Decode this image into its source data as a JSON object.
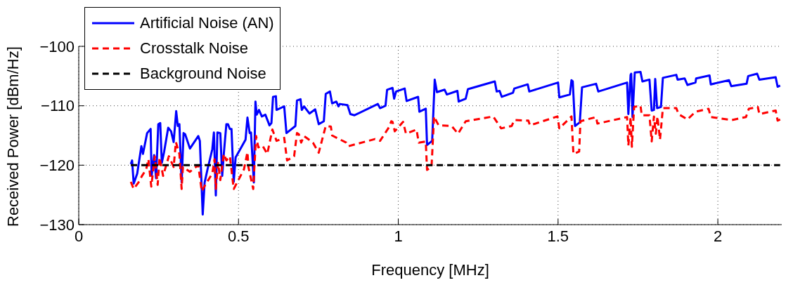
{
  "chart_data": {
    "type": "line",
    "xlabel": "Frequency [MHz]",
    "ylabel": "Received Power [dBm/Hz]",
    "xlim": [
      0,
      2.2
    ],
    "xticks": [
      0,
      0.5,
      1,
      1.5,
      2
    ],
    "ylim": [
      -130,
      -100
    ],
    "yticks": [
      -130,
      -120,
      -110,
      -100
    ],
    "grid": true,
    "legend": "top left",
    "series": [
      {
        "name": "Artificial Noise (AN)",
        "color": "#0000ff",
        "line_style": "solid",
        "x": [
          0.163,
          0.167,
          0.172,
          0.183,
          0.196,
          0.201,
          0.214,
          0.225,
          0.228,
          0.236,
          0.242,
          0.249,
          0.255,
          0.26,
          0.267,
          0.28,
          0.289,
          0.297,
          0.305,
          0.31,
          0.315,
          0.322,
          0.328,
          0.333,
          0.348,
          0.374,
          0.379,
          0.388,
          0.394,
          0.403,
          0.418,
          0.423,
          0.429,
          0.434,
          0.443,
          0.449,
          0.454,
          0.462,
          0.467,
          0.473,
          0.478,
          0.485,
          0.491,
          0.522,
          0.528,
          0.535,
          0.539,
          0.548,
          0.553,
          0.557,
          0.564,
          0.573,
          0.584,
          0.597,
          0.603,
          0.608,
          0.617,
          0.619,
          0.643,
          0.65,
          0.678,
          0.683,
          0.694,
          0.698,
          0.705,
          0.722,
          0.74,
          0.751,
          0.767,
          0.773,
          0.786,
          0.793,
          0.806,
          0.813,
          0.817,
          0.841,
          0.85,
          0.863,
          0.936,
          0.943,
          0.96,
          0.965,
          0.982,
          0.987,
          0.993,
          1.02,
          1.026,
          1.062,
          1.066,
          1.086,
          1.09,
          1.106,
          1.114,
          1.121,
          1.145,
          1.152,
          1.185,
          1.189,
          1.211,
          1.218,
          1.302,
          1.308,
          1.317,
          1.324,
          1.359,
          1.363,
          1.405,
          1.41,
          1.5,
          1.504,
          1.537,
          1.542,
          1.546,
          1.553,
          1.568,
          1.575,
          1.619,
          1.626,
          1.716,
          1.72,
          1.727,
          1.729,
          1.733,
          1.74,
          1.758,
          1.764,
          1.786,
          1.793,
          1.8,
          1.804,
          1.81,
          1.822,
          1.828,
          1.87,
          1.874,
          1.896,
          1.905,
          1.93,
          1.932,
          1.974,
          1.978,
          2.035,
          2.042,
          2.09,
          2.095,
          2.123,
          2.13,
          2.181,
          2.187,
          2.195
        ],
        "values": [
          -119.8,
          -119.2,
          -123.1,
          -121.4,
          -116.8,
          -118.1,
          -114.6,
          -113.9,
          -121.8,
          -118.3,
          -122.2,
          -113.1,
          -112.9,
          -119.6,
          -117.8,
          -113.7,
          -114.3,
          -116.1,
          -110.9,
          -113.4,
          -113.1,
          -122.9,
          -114.6,
          -114.8,
          -117.2,
          -115.1,
          -115.9,
          -128.3,
          -122.9,
          -120.7,
          -117.3,
          -114.5,
          -125.1,
          -114.5,
          -114.6,
          -121.8,
          -118.1,
          -113.1,
          -113.1,
          -113.9,
          -113.9,
          -122.8,
          -118.7,
          -115.7,
          -112,
          -114.6,
          -114.5,
          -122.9,
          -109.3,
          -111.5,
          -110.7,
          -111.8,
          -111.5,
          -113.3,
          -112.9,
          -108.5,
          -108.4,
          -110.7,
          -110.1,
          -114.6,
          -113.4,
          -109.1,
          -108.9,
          -110.7,
          -110.1,
          -111.3,
          -110.6,
          -113.1,
          -112.6,
          -108,
          -107.6,
          -109.6,
          -109.3,
          -110.1,
          -109.7,
          -109.9,
          -111.4,
          -111.6,
          -109.7,
          -110.4,
          -110,
          -107.3,
          -107,
          -108.8,
          -107.6,
          -107.1,
          -109.2,
          -108.5,
          -111,
          -110.5,
          -116.6,
          -115.9,
          -105.6,
          -107.7,
          -107.3,
          -108.1,
          -107.5,
          -109.3,
          -108.8,
          -107.2,
          -105.9,
          -107.6,
          -107.5,
          -108.5,
          -107.8,
          -107.1,
          -106.4,
          -107.6,
          -106.1,
          -108.6,
          -108.1,
          -105.7,
          -105.9,
          -113.4,
          -112.8,
          -106.9,
          -106.3,
          -107.6,
          -106.1,
          -111.4,
          -104.8,
          -104.6,
          -111.9,
          -104.4,
          -104.3,
          -105.9,
          -105.6,
          -110.8,
          -110.7,
          -105.5,
          -110.4,
          -110.2,
          -105.3,
          -104.8,
          -105.6,
          -105.4,
          -106.5,
          -106.1,
          -105.4,
          -104.9,
          -106.4,
          -105.7,
          -106.7,
          -106.3,
          -105,
          -104.6,
          -105.6,
          -105.2,
          -106.8,
          -106.6
        ]
      },
      {
        "name": "Crosstalk Noise",
        "color": "#ff0000",
        "line_style": "dashed",
        "x": [
          0.163,
          0.172,
          0.187,
          0.198,
          0.211,
          0.218,
          0.227,
          0.238,
          0.247,
          0.253,
          0.264,
          0.282,
          0.297,
          0.304,
          0.315,
          0.322,
          0.326,
          0.348,
          0.374,
          0.385,
          0.396,
          0.418,
          0.425,
          0.429,
          0.436,
          0.443,
          0.454,
          0.462,
          0.473,
          0.485,
          0.517,
          0.528,
          0.531,
          0.546,
          0.555,
          0.562,
          0.575,
          0.59,
          0.606,
          0.619,
          0.643,
          0.652,
          0.674,
          0.683,
          0.689,
          0.696,
          0.705,
          0.733,
          0.751,
          0.773,
          0.789,
          0.793,
          0.837,
          0.844,
          0.927,
          0.943,
          0.971,
          0.978,
          0.982,
          0.989,
          1.015,
          1.024,
          1.057,
          1.064,
          1.086,
          1.09,
          1.104,
          1.112,
          1.126,
          1.167,
          1.187,
          1.211,
          1.297,
          1.322,
          1.355,
          1.363,
          1.407,
          1.412,
          1.498,
          1.504,
          1.542,
          1.548,
          1.566,
          1.57,
          1.619,
          1.623,
          1.716,
          1.72,
          1.727,
          1.731,
          1.738,
          1.758,
          1.762,
          1.786,
          1.793,
          1.8,
          1.806,
          1.811,
          1.819,
          1.828,
          1.87,
          1.877,
          1.905,
          1.93,
          1.971,
          1.978,
          2.044,
          2.088,
          2.097,
          2.125,
          2.13,
          2.181,
          2.187,
          2.195
        ],
        "values": [
          -122.8,
          -124,
          -122.9,
          -121.8,
          -120.7,
          -119,
          -123.6,
          -118.5,
          -123.3,
          -118.7,
          -121.8,
          -118.5,
          -120.3,
          -116.1,
          -118.1,
          -124,
          -120.3,
          -121.1,
          -120,
          -124.4,
          -123.3,
          -121.4,
          -119,
          -124,
          -119.6,
          -122.5,
          -118.1,
          -119.2,
          -118.5,
          -124,
          -120.7,
          -117.8,
          -120.3,
          -124,
          -115.1,
          -117,
          -116.7,
          -118.1,
          -114,
          -115.9,
          -115.4,
          -119.2,
          -118.5,
          -114.6,
          -114.8,
          -116.2,
          -115.1,
          -116.2,
          -117.9,
          -113.4,
          -113.5,
          -115,
          -116.2,
          -116.8,
          -115.6,
          -115.9,
          -113.6,
          -112.6,
          -112.7,
          -114.3,
          -112.7,
          -114.7,
          -114,
          -116.2,
          -116,
          -120.8,
          -120.3,
          -111.8,
          -113.3,
          -113.4,
          -114.7,
          -112.6,
          -111.8,
          -113.8,
          -113.4,
          -112.4,
          -112.5,
          -113.3,
          -111.8,
          -113.8,
          -111.8,
          -118.1,
          -117.7,
          -112.6,
          -111.9,
          -113,
          -111.9,
          -116.7,
          -111.9,
          -116.9,
          -110.2,
          -110,
          -111.6,
          -111.6,
          -116,
          -111.8,
          -114.7,
          -111.8,
          -115.7,
          -110.4,
          -110.4,
          -111.4,
          -112.3,
          -111,
          -110.5,
          -111.9,
          -112.4,
          -111.9,
          -110.5,
          -110.2,
          -111.4,
          -110.8,
          -112.5,
          -112.3
        ]
      },
      {
        "name": "Background Noise",
        "color": "#000000",
        "line_style": "dashed",
        "x": [
          0.163,
          2.195
        ],
        "values": [
          -120,
          -120
        ]
      }
    ]
  }
}
